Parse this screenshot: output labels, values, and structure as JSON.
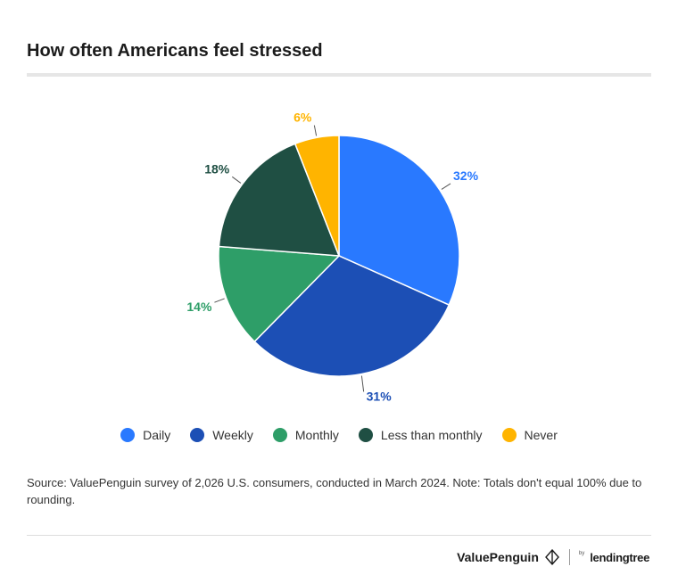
{
  "chart_data": {
    "type": "pie",
    "title": "How often Americans feel stressed",
    "categories": [
      "Daily",
      "Weekly",
      "Monthly",
      "Less than monthly",
      "Never"
    ],
    "values": [
      32,
      31,
      14,
      18,
      6
    ],
    "labels": [
      "32%",
      "31%",
      "14%",
      "18%",
      "6%"
    ],
    "colors": [
      "#2979ff",
      "#1c4fb5",
      "#2e9e68",
      "#1f4f43",
      "#ffb400"
    ],
    "legend_position": "bottom"
  },
  "source_note": "Source: ValuePenguin survey of 2,026 U.S. consumers, conducted in March 2024. Note: Totals don't equal 100% due to rounding.",
  "footer": {
    "brand_primary": "ValuePenguin",
    "brand_by": "by",
    "brand_secondary": "lendingtree"
  }
}
